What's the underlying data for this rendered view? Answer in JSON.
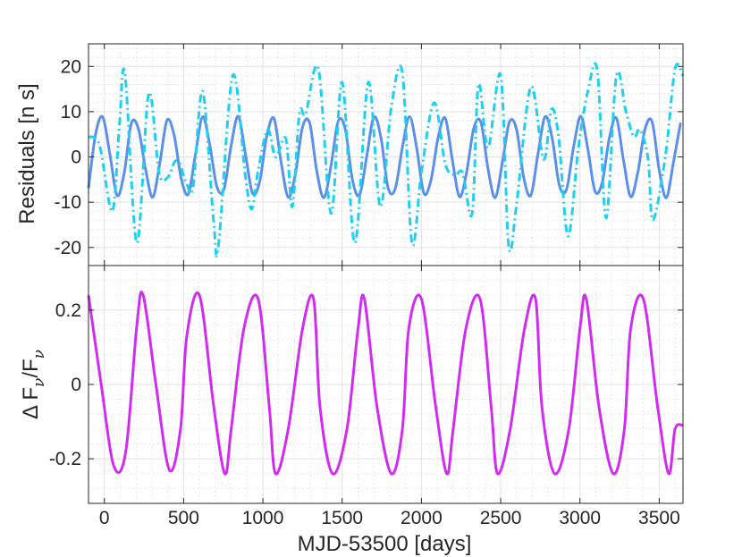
{
  "chart_data": [
    {
      "type": "line",
      "panel": "top",
      "title": "",
      "xlabel": "",
      "ylabel": "Residuals [n s]",
      "xlim": [
        -100,
        3650
      ],
      "ylim": [
        -24,
        25
      ],
      "yticks": [
        -20,
        -10,
        0,
        10,
        20
      ],
      "ytick_labels": [
        "-20",
        "-10",
        "0",
        "10",
        "20"
      ],
      "grid": true,
      "minor_grid": true,
      "legend": "none",
      "series": [
        {
          "style": "solid",
          "color": "#5b8fe8",
          "description_values": "sinusoid, amplitude 9, period 180 days, peak near x=0",
          "x": [
            -100,
            -55,
            -10,
            35,
            80,
            125,
            170,
            215,
            260,
            305,
            350,
            395,
            440,
            485,
            530,
            575,
            620,
            665,
            710,
            755,
            800,
            845,
            890,
            935,
            980,
            1025,
            1070,
            1115,
            1160,
            1205,
            1250,
            1295,
            1340,
            1385,
            1430,
            1475,
            1520,
            1565,
            1610,
            1655,
            1700,
            1745,
            1790,
            1835,
            1880,
            1925,
            1970,
            2015,
            2060,
            2105,
            2150,
            2195,
            2240,
            2285,
            2330,
            2375,
            2420,
            2465,
            2510,
            2555,
            2600,
            2645,
            2690,
            2735,
            2780,
            2825,
            2870,
            2915,
            2960,
            3005,
            3050,
            3095,
            3140,
            3185,
            3230,
            3275,
            3320,
            3365,
            3410,
            3455,
            3500,
            3545,
            3590,
            3635
          ],
          "y": [
            -6.9,
            5.1,
            8.8,
            0.6,
            -8.5,
            -3.6,
            7.4,
            6.2,
            -2.7,
            -8.9,
            -1.3,
            8.1,
            4.8,
            -4.8,
            -8.2,
            0.7,
            8.9,
            2.6,
            -6.6,
            -7.1,
            2.6,
            9.0,
            0.6,
            -8.0,
            -5.4,
            4.7,
            8.5,
            -1.2,
            -8.9,
            -3.8,
            6.6,
            7.5,
            -3.2,
            -9.0,
            -1.9,
            7.9,
            6.1,
            -5.1,
            -8.4,
            0.1,
            8.8,
            4.2,
            -6.9,
            -7.0,
            2.1,
            8.9,
            2.0,
            -8.0,
            -5.2,
            4.2,
            8.6,
            -0.6,
            -8.8,
            -3.4,
            6.3,
            7.7,
            -2.6,
            -9.0,
            -1.4,
            7.7,
            6.1,
            -4.5,
            -8.5,
            0.6,
            8.9,
            4.1,
            -6.3,
            -7.2,
            2.2,
            9.0,
            1.7,
            -7.6,
            -5.7,
            4.1,
            8.6,
            -0.8,
            -8.8,
            -3.4,
            6.1,
            7.8,
            -2.9,
            -9.0,
            -1.1,
            7.6
          ]
        },
        {
          "style": "dash-dot",
          "color": "#1fd0ee",
          "x": [
            -100,
            -30,
            50,
            95,
            130,
            205,
            280,
            345,
            400,
            445,
            475,
            520,
            560,
            620,
            690,
            720,
            810,
            890,
            930,
            970,
            1030,
            1080,
            1145,
            1185,
            1230,
            1270,
            1350,
            1430,
            1500,
            1580,
            1665,
            1740,
            1810,
            1880,
            1940,
            2000,
            2080,
            2150,
            2210,
            2260,
            2320,
            2360,
            2420,
            2500,
            2550,
            2600,
            2690,
            2770,
            2820,
            2865,
            2925,
            2990,
            3050,
            3110,
            3165,
            3230,
            3290,
            3340,
            3380,
            3430,
            3460,
            3540,
            3600,
            3650
          ],
          "y": [
            4.5,
            2.5,
            -12.0,
            7.0,
            18.5,
            -19.0,
            14.0,
            -3.5,
            -4.5,
            -1.0,
            -1.5,
            -6.0,
            -6.5,
            14.5,
            -14.5,
            -19.5,
            18.0,
            -4.5,
            -11.5,
            -3.0,
            6.0,
            0.0,
            4.0,
            -11.0,
            9.5,
            9.5,
            19.5,
            -12.5,
            16.5,
            -19.0,
            16.5,
            -11.0,
            11.0,
            18.5,
            -19.0,
            -3.5,
            12.0,
            -1.5,
            -4.0,
            -3.5,
            -12.5,
            16.0,
            2.0,
            18.0,
            -19.5,
            -10.5,
            15.5,
            -0.5,
            10.5,
            4.5,
            -17.5,
            2.0,
            14.5,
            19.0,
            -13.5,
            18.0,
            10.0,
            4.5,
            6.0,
            -0.5,
            -14.0,
            0.5,
            19.5,
            18.0
          ]
        }
      ]
    },
    {
      "type": "line",
      "panel": "bottom",
      "title": "",
      "xlabel": "MJD-53500 [days]",
      "ylabel": "Δ F",
      "ylabel_sub": "ν",
      "ylabel_sep": "/F",
      "xlim": [
        -100,
        3650
      ],
      "ylim": [
        -0.32,
        0.32
      ],
      "xticks": [
        0,
        500,
        1000,
        1500,
        2000,
        2500,
        3000,
        3500
      ],
      "xtick_labels": [
        "0",
        "500",
        "1000",
        "1500",
        "2000",
        "2500",
        "3000",
        "3500"
      ],
      "yticks": [
        -0.2,
        0,
        0.2
      ],
      "ytick_labels": [
        "-0.2",
        "0",
        "0.2"
      ],
      "grid": true,
      "minor_grid": true,
      "legend": "none",
      "series": [
        {
          "style": "solid",
          "color": "#d02cf0",
          "x": [
            -100,
            -20,
            60,
            135,
            205,
            245,
            325,
            410,
            480,
            520,
            600,
            690,
            760,
            800,
            880,
            970,
            1040,
            1080,
            1160,
            1250,
            1320,
            1360,
            1440,
            1530,
            1600,
            1640,
            1720,
            1810,
            1880,
            1920,
            2000,
            2090,
            2160,
            2200,
            2280,
            2370,
            2440,
            2480,
            2560,
            2650,
            2720,
            2760,
            2840,
            2930,
            3000,
            3040,
            3120,
            3210,
            3280,
            3320,
            3400,
            3490,
            3560,
            3600,
            3650
          ],
          "y": [
            0.24,
            0.0,
            -0.22,
            -0.18,
            0.16,
            0.24,
            0.0,
            -0.23,
            -0.12,
            0.13,
            0.24,
            -0.06,
            -0.24,
            -0.12,
            0.15,
            0.23,
            -0.06,
            -0.24,
            -0.12,
            0.15,
            0.23,
            -0.06,
            -0.24,
            -0.12,
            0.15,
            0.23,
            -0.06,
            -0.24,
            -0.12,
            0.15,
            0.23,
            -0.06,
            -0.24,
            -0.12,
            0.15,
            0.23,
            -0.06,
            -0.24,
            -0.12,
            0.15,
            0.23,
            -0.06,
            -0.24,
            -0.12,
            0.15,
            0.23,
            -0.06,
            -0.24,
            -0.12,
            0.15,
            0.23,
            -0.06,
            -0.24,
            -0.12,
            -0.11
          ]
        }
      ]
    }
  ]
}
